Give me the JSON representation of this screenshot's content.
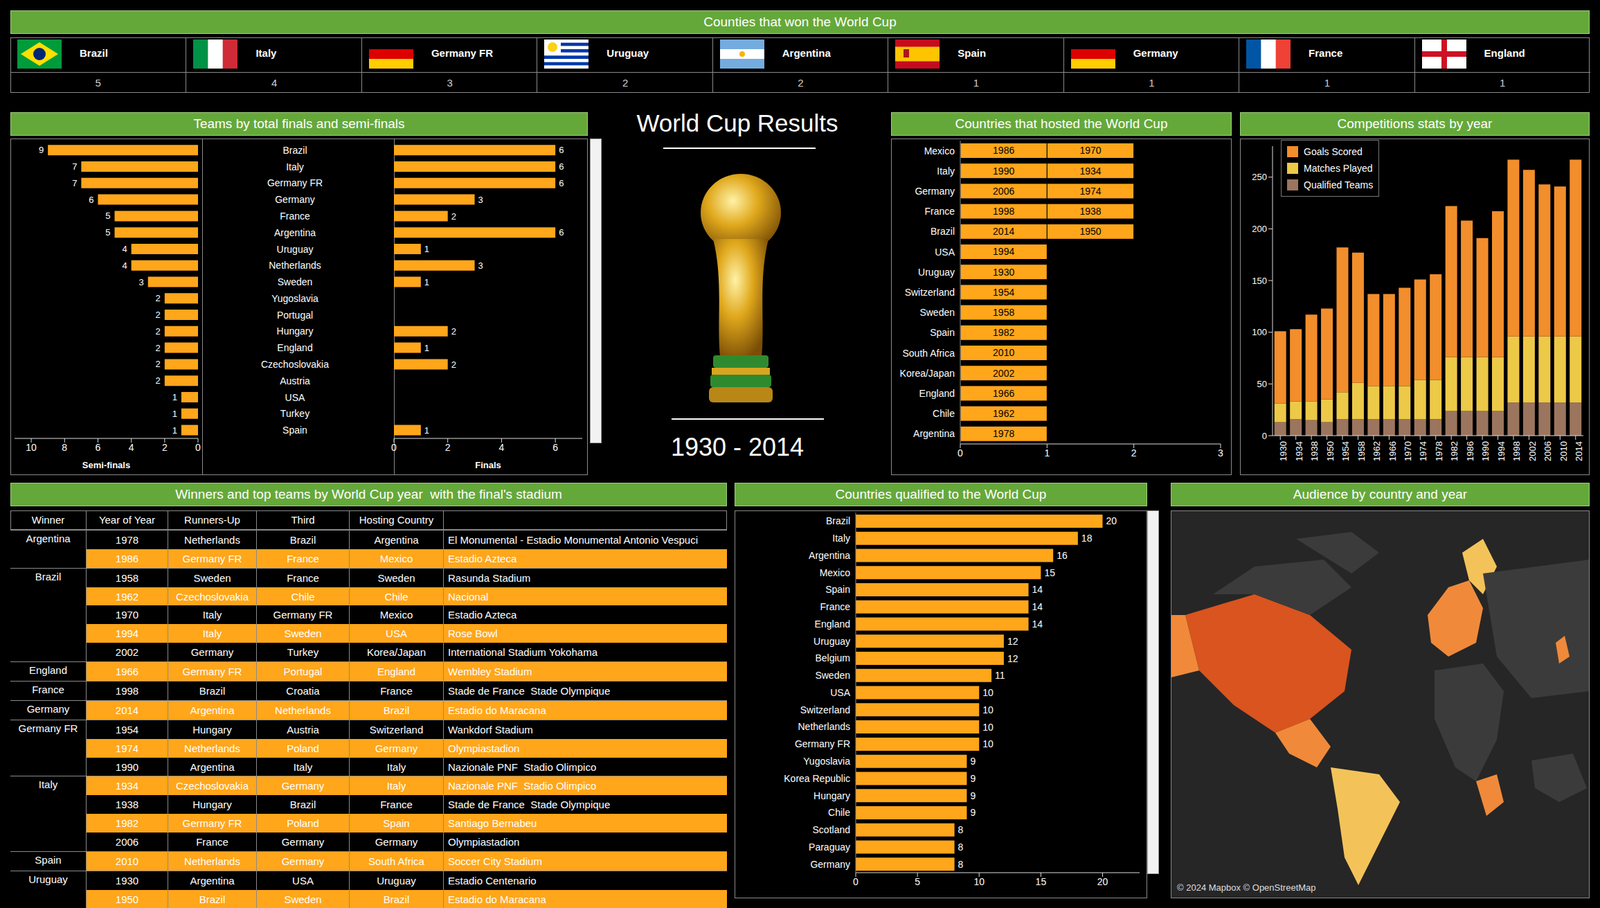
{
  "header": {
    "title": "Counties that won the World Cup",
    "winners": [
      {
        "name": "Brazil",
        "titles": 5
      },
      {
        "name": "Italy",
        "titles": 4
      },
      {
        "name": "Germany FR",
        "titles": 3
      },
      {
        "name": "Uruguay",
        "titles": 2
      },
      {
        "name": "Argentina",
        "titles": 2
      },
      {
        "name": "Spain",
        "titles": 1
      },
      {
        "name": "Germany",
        "titles": 1
      },
      {
        "name": "France",
        "titles": 1
      },
      {
        "name": "England",
        "titles": 1
      }
    ]
  },
  "center": {
    "title": "World Cup Results",
    "period": "1930 - 2014"
  },
  "chart_data": [
    {
      "type": "bar",
      "title": "Teams by total finals and semi-finals",
      "orientation": "horizontal",
      "data_labels": true,
      "categories": [
        "Brazil",
        "Italy",
        "Germany FR",
        "Germany",
        "France",
        "Argentina",
        "Uruguay",
        "Netherlands",
        "Sweden",
        "Yugoslavia",
        "Portugal",
        "Hungary",
        "England",
        "Czechoslovakia",
        "Austria",
        "USA",
        "Turkey",
        "Spain"
      ],
      "series": [
        {
          "name": "Semi-finals",
          "color": "#ffa61a",
          "values": [
            9,
            7,
            7,
            6,
            5,
            5,
            4,
            4,
            3,
            2,
            2,
            2,
            2,
            2,
            2,
            1,
            1,
            1
          ],
          "xlim": [
            0,
            11
          ],
          "xticks": [
            0,
            2,
            4,
            6,
            8,
            10
          ]
        },
        {
          "name": "Finals",
          "color": "#ffa61a",
          "values": [
            6,
            6,
            6,
            3,
            2,
            6,
            1,
            3,
            1,
            0,
            0,
            2,
            1,
            2,
            0,
            0,
            0,
            1
          ],
          "xlim": [
            0,
            7
          ],
          "xticks": [
            0,
            2,
            4,
            6
          ]
        }
      ]
    },
    {
      "type": "bar",
      "title": "Countries that hosted the World Cup",
      "orientation": "horizontal",
      "stacked": true,
      "color": "#ffa61a",
      "categories": [
        "Mexico",
        "Italy",
        "Germany",
        "France",
        "Brazil",
        "USA",
        "Uruguay",
        "Switzerland",
        "Sweden",
        "Spain",
        "South Africa",
        "Korea/Japan",
        "England",
        "Chile",
        "Argentina"
      ],
      "values": [
        2,
        2,
        2,
        2,
        2,
        1,
        1,
        1,
        1,
        1,
        1,
        1,
        1,
        1,
        1
      ],
      "years": [
        [
          1986,
          1970
        ],
        [
          1990,
          1934
        ],
        [
          2006,
          1974
        ],
        [
          1998,
          1938
        ],
        [
          2014,
          1950
        ],
        [
          1994
        ],
        [
          1930
        ],
        [
          1954
        ],
        [
          1958
        ],
        [
          1982
        ],
        [
          2010
        ],
        [
          2002
        ],
        [
          1966
        ],
        [
          1962
        ],
        [
          1978
        ]
      ],
      "xlim": [
        0,
        3
      ],
      "xticks": [
        0,
        1,
        2,
        3
      ]
    },
    {
      "type": "bar",
      "title": "Competitions stats by year",
      "stacked": true,
      "grid": false,
      "legend": "top-left",
      "categories": [
        "1930",
        "1934",
        "1938",
        "1950",
        "1954",
        "1958",
        "1962",
        "1966",
        "1970",
        "1974",
        "1978",
        "1982",
        "1986",
        "1990",
        "1994",
        "1998",
        "2002",
        "2006",
        "2010",
        "2014"
      ],
      "series": [
        {
          "name": "Goals Scored",
          "color": "#f28e2b",
          "values": [
            70,
            70,
            84,
            88,
            140,
            126,
            89,
            89,
            95,
            97,
            102,
            146,
            132,
            115,
            141,
            171,
            161,
            147,
            145,
            171
          ]
        },
        {
          "name": "Matches Played",
          "color": "#edc948",
          "values": [
            18,
            17,
            18,
            22,
            26,
            35,
            32,
            32,
            32,
            38,
            38,
            52,
            52,
            52,
            52,
            64,
            64,
            64,
            64,
            64
          ]
        },
        {
          "name": "Qualified Teams",
          "color": "#9c755f",
          "values": [
            13,
            16,
            15,
            13,
            16,
            16,
            16,
            16,
            16,
            16,
            16,
            24,
            24,
            24,
            24,
            32,
            32,
            32,
            32,
            32
          ]
        }
      ],
      "ylim": [
        0,
        280
      ],
      "yticks": [
        0,
        50,
        100,
        150,
        200,
        250
      ]
    },
    {
      "type": "bar",
      "title": "Countries qualified to the World Cup",
      "orientation": "horizontal",
      "data_labels": true,
      "color": "#ffa61a",
      "categories": [
        "Brazil",
        "Italy",
        "Argentina",
        "Mexico",
        "Spain",
        "France",
        "England",
        "Uruguay",
        "Belgium",
        "Sweden",
        "USA",
        "Switzerland",
        "Netherlands",
        "Germany FR",
        "Yugoslavia",
        "Korea Republic",
        "Hungary",
        "Chile",
        "Scotland",
        "Paraguay",
        "Germany"
      ],
      "values": [
        20,
        18,
        16,
        15,
        14,
        14,
        14,
        12,
        12,
        11,
        10,
        10,
        10,
        10,
        9,
        9,
        9,
        9,
        8,
        8,
        8
      ],
      "xlim": [
        0,
        23
      ],
      "xticks": [
        0,
        5,
        10,
        15,
        20
      ]
    }
  ],
  "table": {
    "title": "Winners and top teams by World Cup year  with the final's stadium",
    "columns": [
      "Winner",
      "Year of Year",
      "Runners-Up",
      "Third",
      "Hosting Country"
    ],
    "groups": [
      {
        "winner": "Argentina",
        "rows": [
          [
            1978,
            "Netherlands",
            "Brazil",
            "Argentina",
            "El Monumental - Estadio Monumental Antonio Vespuci"
          ],
          [
            1986,
            "Germany FR",
            "France",
            "Mexico",
            "Estadio Azteca"
          ]
        ]
      },
      {
        "winner": "Brazil",
        "rows": [
          [
            1958,
            "Sweden",
            "France",
            "Sweden",
            "Rasunda Stadium"
          ],
          [
            1962,
            "Czechoslovakia",
            "Chile",
            "Chile",
            "Nacional"
          ],
          [
            1970,
            "Italy",
            "Germany FR",
            "Mexico",
            "Estadio Azteca"
          ],
          [
            1994,
            "Italy",
            "Sweden",
            "USA",
            "Rose Bowl"
          ],
          [
            2002,
            "Germany",
            "Turkey",
            "Korea/Japan",
            "International Stadium Yokohama"
          ]
        ]
      },
      {
        "winner": "England",
        "rows": [
          [
            1966,
            "Germany FR",
            "Portugal",
            "England",
            "Wembley Stadium"
          ]
        ]
      },
      {
        "winner": "France",
        "rows": [
          [
            1998,
            "Brazil",
            "Croatia",
            "France",
            "Stade de France  Stade Olympique"
          ]
        ]
      },
      {
        "winner": "Germany",
        "rows": [
          [
            2014,
            "Argentina",
            "Netherlands",
            "Brazil",
            "Estadio do Maracana"
          ]
        ]
      },
      {
        "winner": "Germany FR",
        "rows": [
          [
            1954,
            "Hungary",
            "Austria",
            "Switzerland",
            "Wankdorf Stadium"
          ],
          [
            1974,
            "Netherlands",
            "Poland",
            "Germany",
            "Olympiastadion"
          ],
          [
            1990,
            "Argentina",
            "Italy",
            "Italy",
            "Nazionale PNF  Stadio Olimpico"
          ]
        ]
      },
      {
        "winner": "Italy",
        "rows": [
          [
            1934,
            "Czechoslovakia",
            "Germany",
            "Italy",
            "Nazionale PNF  Stadio Olimpico"
          ],
          [
            1938,
            "Hungary",
            "Brazil",
            "France",
            "Stade de France  Stade Olympique"
          ],
          [
            1982,
            "Germany FR",
            "Poland",
            "Spain",
            "Santiago Bernabeu"
          ],
          [
            2006,
            "France",
            "Germany",
            "Germany",
            "Olympiastadion"
          ]
        ]
      },
      {
        "winner": "Spain",
        "rows": [
          [
            2010,
            "Netherlands",
            "Germany",
            "South Africa",
            "Soccer City Stadium"
          ]
        ]
      },
      {
        "winner": "Uruguay",
        "rows": [
          [
            1930,
            "Argentina",
            "USA",
            "Uruguay",
            "Estadio Centenario"
          ],
          [
            1950,
            "Brazil",
            "Sweden",
            "Brazil",
            "Estadio do Maracana"
          ]
        ]
      }
    ]
  },
  "map": {
    "title": "Audience by country and year",
    "attribution": "© 2024 Mapbox © OpenStreetMap"
  }
}
